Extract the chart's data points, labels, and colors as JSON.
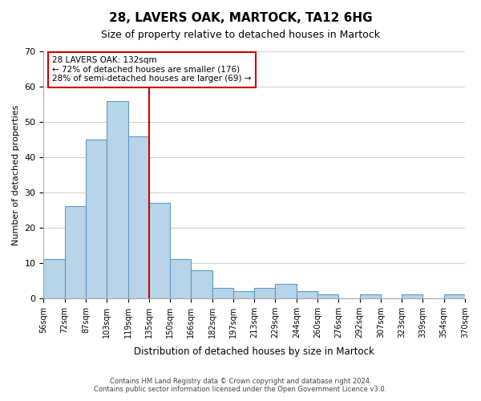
{
  "title": "28, LAVERS OAK, MARTOCK, TA12 6HG",
  "subtitle": "Size of property relative to detached houses in Martock",
  "xlabel": "Distribution of detached houses by size in Martock",
  "ylabel": "Number of detached properties",
  "bar_color": "#b8d4e8",
  "bar_edge_color": "#5a9cc5",
  "bins": [
    "56sqm",
    "72sqm",
    "87sqm",
    "103sqm",
    "119sqm",
    "135sqm",
    "150sqm",
    "166sqm",
    "182sqm",
    "197sqm",
    "213sqm",
    "229sqm",
    "244sqm",
    "260sqm",
    "276sqm",
    "292sqm",
    "307sqm",
    "323sqm",
    "339sqm",
    "354sqm",
    "370sqm"
  ],
  "values": [
    11,
    26,
    45,
    56,
    46,
    27,
    11,
    8,
    3,
    2,
    3,
    4,
    2,
    1,
    0,
    1,
    0,
    1,
    0,
    1
  ],
  "ylim": [
    0,
    70
  ],
  "yticks": [
    0,
    10,
    20,
    30,
    40,
    50,
    60,
    70
  ],
  "vline_color": "#cc0000",
  "annotation_text": "28 LAVERS OAK: 132sqm\n← 72% of detached houses are smaller (176)\n28% of semi-detached houses are larger (69) →",
  "annotation_box_color": "#ffffff",
  "annotation_box_edge_color": "#cc0000",
  "footer_line1": "Contains HM Land Registry data © Crown copyright and database right 2024.",
  "footer_line2": "Contains public sector information licensed under the Open Government Licence v3.0.",
  "background_color": "#ffffff",
  "grid_color": "#d0d0d0"
}
